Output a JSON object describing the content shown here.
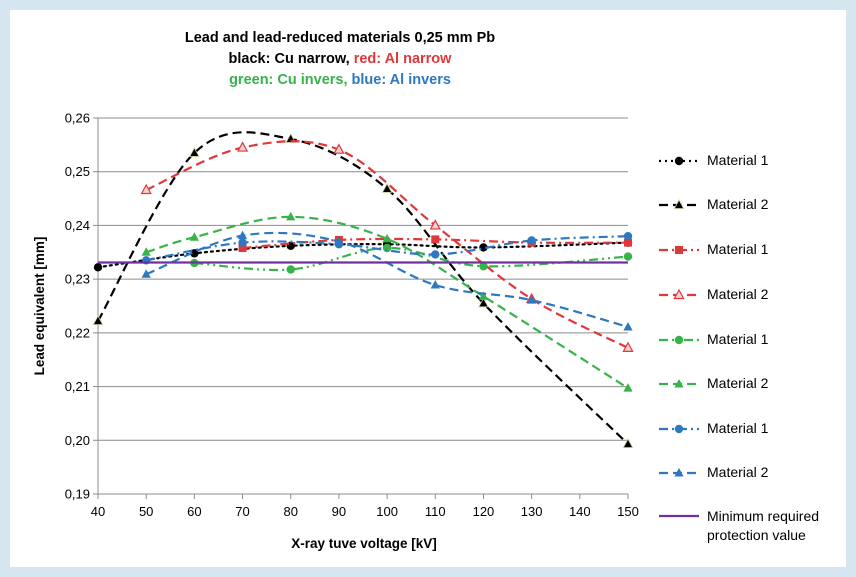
{
  "chart_data": {
    "type": "line",
    "title_lines": [
      [
        {
          "text": "Lead and lead-reduced materials 0,25 mm Pb",
          "color": "#000000"
        }
      ],
      [
        {
          "text": "black: Cu narrow, ",
          "color": "#000000"
        },
        {
          "text": "red: Al narrow",
          "color": "#e0373a"
        }
      ],
      [
        {
          "text": "green: Cu invers, ",
          "color": "#38b34a"
        },
        {
          "text": "blue: Al invers",
          "color": "#2e78c2"
        }
      ]
    ],
    "xlabel": "X-ray tuve voltage [kV]",
    "ylabel": "Lead equivalent [mm]",
    "xlim": [
      40,
      150
    ],
    "ylim": [
      0.19,
      0.26
    ],
    "x_ticks": [
      40,
      50,
      60,
      70,
      80,
      90,
      100,
      110,
      120,
      130,
      140,
      150
    ],
    "y_ticks": [
      "0,19",
      "0,20",
      "0,21",
      "0,22",
      "0,23",
      "0,24",
      "0,25",
      "0,26"
    ],
    "grid": "horizontal",
    "legend_position": "right",
    "series": [
      {
        "name": "Material 1",
        "color": "#000000",
        "marker": "circle",
        "dash": "dot",
        "x": [
          40,
          60,
          80,
          100,
          120,
          150
        ],
        "y": [
          0.2322,
          0.2348,
          0.2362,
          0.2365,
          0.2359,
          0.2368
        ]
      },
      {
        "name": "Material 2",
        "color": "#000000",
        "marker": "triangle",
        "dash": "dash",
        "x": [
          40,
          60,
          80,
          100,
          120,
          150
        ],
        "y": [
          0.2222,
          0.2535,
          0.2561,
          0.2468,
          0.2255,
          0.1993
        ]
      },
      {
        "name": "Material 1",
        "color": "#e0373a",
        "marker": "square",
        "dash": "dashdot",
        "x": [
          70,
          90,
          110,
          130,
          150
        ],
        "y": [
          0.2358,
          0.2373,
          0.2374,
          0.2368,
          0.2368
        ]
      },
      {
        "name": "Material 2",
        "color": "#e0373a",
        "marker": "triangle-open",
        "dash": "dash",
        "x": [
          50,
          70,
          90,
          110,
          130,
          150
        ],
        "y": [
          0.2466,
          0.2545,
          0.2541,
          0.24,
          0.2263,
          0.2172
        ]
      },
      {
        "name": "Material 1",
        "color": "#38b34a",
        "marker": "circle",
        "dash": "dashdotdot",
        "x": [
          60,
          80,
          100,
          120,
          150
        ],
        "y": [
          0.233,
          0.2318,
          0.2358,
          0.2324,
          0.2342
        ]
      },
      {
        "name": "Material 2",
        "color": "#38b34a",
        "marker": "triangle",
        "dash": "dash",
        "x": [
          50,
          60,
          80,
          100,
          120,
          150
        ],
        "y": [
          0.235,
          0.2378,
          0.2416,
          0.2375,
          0.2268,
          0.2097
        ]
      },
      {
        "name": "Material 1",
        "color": "#2e78c2",
        "marker": "circle",
        "dash": "dashdot",
        "x": [
          50,
          70,
          90,
          110,
          130,
          150
        ],
        "y": [
          0.2335,
          0.2368,
          0.2365,
          0.2346,
          0.2372,
          0.238
        ]
      },
      {
        "name": "Material 2",
        "color": "#2e78c2",
        "marker": "triangle",
        "dash": "dash",
        "x": [
          50,
          70,
          90,
          110,
          130,
          150
        ],
        "y": [
          0.2309,
          0.2381,
          0.237,
          0.2289,
          0.2261,
          0.2211
        ]
      },
      {
        "name": "Minimum required protection value",
        "color": "#7030a0",
        "marker": "none",
        "dash": "solid",
        "x": [
          40,
          150
        ],
        "y": [
          0.2331,
          0.2331
        ]
      }
    ]
  }
}
